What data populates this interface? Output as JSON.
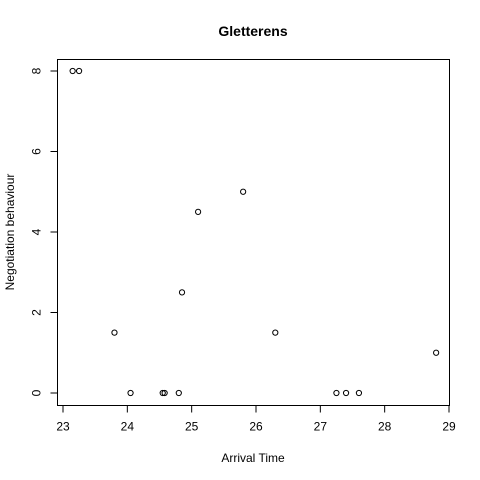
{
  "chart_data": {
    "type": "scatter",
    "title": "Gletterens",
    "xlabel": "Arrival Time",
    "ylabel": "Negotiation behaviour",
    "xlim": [
      23,
      29
    ],
    "ylim": [
      0,
      8
    ],
    "x_ticks": [
      "23",
      "24",
      "25",
      "26",
      "27",
      "28",
      "29"
    ],
    "y_ticks": [
      "0",
      "2",
      "4",
      "6",
      "8"
    ],
    "grid": false,
    "series": [
      {
        "points": [
          {
            "x": 23.15,
            "y": 8
          },
          {
            "x": 23.25,
            "y": 8
          },
          {
            "x": 23.8,
            "y": 1.5
          },
          {
            "x": 24.05,
            "y": 0
          },
          {
            "x": 24.55,
            "y": 0
          },
          {
            "x": 24.58,
            "y": 0
          },
          {
            "x": 24.8,
            "y": 0
          },
          {
            "x": 24.85,
            "y": 2.5
          },
          {
            "x": 25.1,
            "y": 4.5
          },
          {
            "x": 25.8,
            "y": 5
          },
          {
            "x": 26.3,
            "y": 1.5
          },
          {
            "x": 27.25,
            "y": 0
          },
          {
            "x": 27.4,
            "y": 0
          },
          {
            "x": 27.6,
            "y": 0
          },
          {
            "x": 28.8,
            "y": 1
          }
        ]
      }
    ]
  }
}
